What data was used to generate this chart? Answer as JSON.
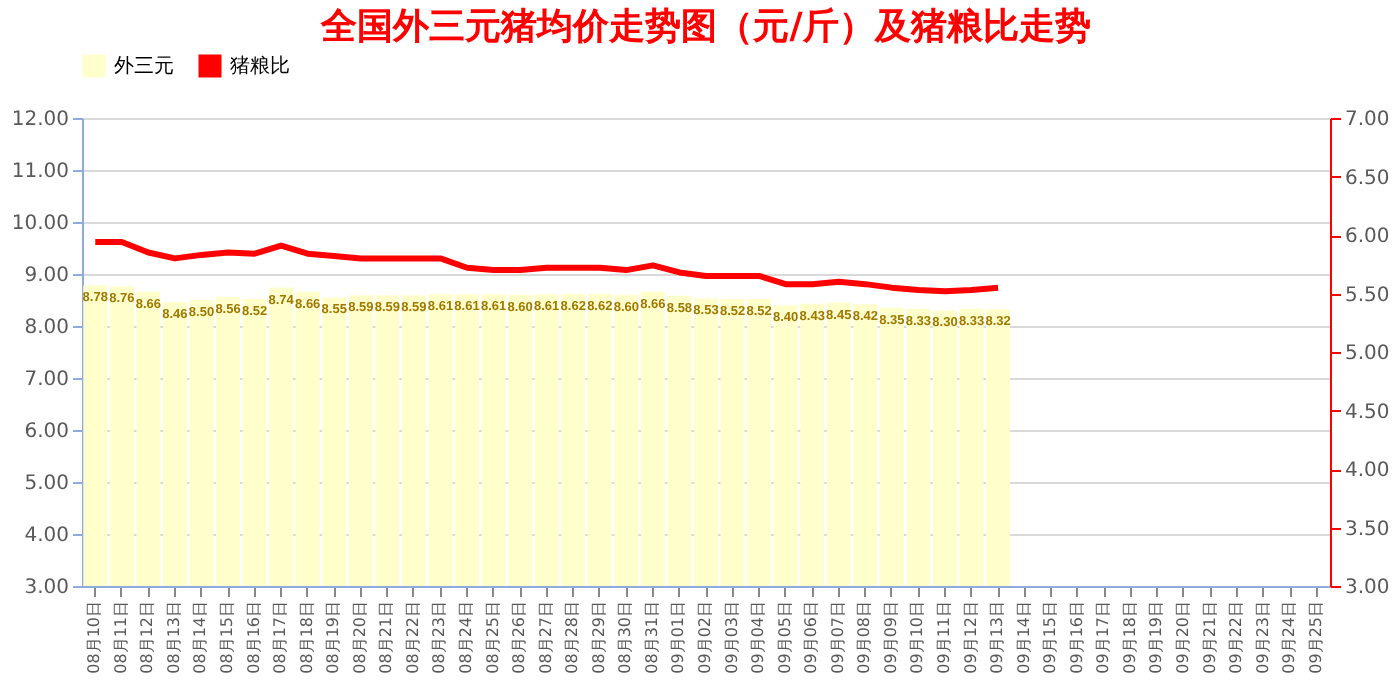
{
  "chart_data": {
    "type": "bar",
    "title": "全国外三元猪均价走势图（元/斤）及猪粮比走势",
    "categories": [
      "08月10日",
      "08月11日",
      "08月12日",
      "08月13日",
      "08月14日",
      "08月15日",
      "08月16日",
      "08月17日",
      "08月18日",
      "08月19日",
      "08月20日",
      "08月21日",
      "08月22日",
      "08月23日",
      "08月24日",
      "08月25日",
      "08月26日",
      "08月27日",
      "08月28日",
      "08月29日",
      "08月30日",
      "08月31日",
      "09月01日",
      "09月02日",
      "09月03日",
      "09月04日",
      "09月05日",
      "09月06日",
      "09月07日",
      "09月08日",
      "09月09日",
      "09月10日",
      "09月11日",
      "09月12日",
      "09月13日",
      "09月14日",
      "09月15日",
      "09月16日",
      "09月17日",
      "09月18日",
      "09月19日",
      "09月20日",
      "09月21日",
      "09月22日",
      "09月23日",
      "09月24日",
      "09月25日"
    ],
    "series": [
      {
        "name": "外三元",
        "color": "#ffffcc",
        "values": [
          8.78,
          8.76,
          8.66,
          8.46,
          8.5,
          8.56,
          8.52,
          8.74,
          8.66,
          8.55,
          8.59,
          8.59,
          8.59,
          8.61,
          8.61,
          8.61,
          8.6,
          8.61,
          8.62,
          8.62,
          8.6,
          8.66,
          8.58,
          8.53,
          8.52,
          8.52,
          8.4,
          8.43,
          8.45,
          8.42,
          8.35,
          8.33,
          8.3,
          8.33,
          8.32,
          null,
          null,
          null,
          null,
          null,
          null,
          null,
          null,
          null,
          null,
          null,
          null
        ],
        "value_labels": [
          "8.78",
          "8.76",
          "8.66",
          "8.46",
          "8.50",
          "8.56",
          "8.52",
          "8.74",
          "8.66",
          "8.55",
          "8.59",
          "8.59",
          "8.59",
          "8.61",
          "8.61",
          "8.61",
          "8.60",
          "8.61",
          "8.62",
          "8.62",
          "8.60",
          "8.66",
          "8.58",
          "8.53",
          "8.52",
          "8.52",
          "8.40",
          "8.43",
          "8.45",
          "8.42",
          "8.35",
          "8.33",
          "8.30",
          "8.33",
          "8.32",
          null,
          null,
          null,
          null,
          null,
          null,
          null,
          null,
          null,
          null,
          null,
          null
        ]
      },
      {
        "name": "猪粮比",
        "type": "line",
        "axis": "y2",
        "color": "#ff0000",
        "values": [
          5.94,
          5.94,
          5.85,
          5.8,
          5.83,
          5.85,
          5.84,
          5.91,
          5.84,
          5.82,
          5.8,
          5.8,
          5.8,
          5.8,
          5.72,
          5.7,
          5.7,
          5.72,
          5.72,
          5.72,
          5.7,
          5.74,
          5.68,
          5.65,
          5.65,
          5.65,
          5.58,
          5.58,
          5.6,
          5.58,
          5.55,
          5.53,
          5.52,
          5.53,
          5.55,
          null,
          null,
          null,
          null,
          null,
          null,
          null,
          null,
          null,
          null,
          null,
          null
        ]
      }
    ],
    "ylim": [
      3,
      12
    ],
    "yticks": [
      {
        "value": 3,
        "label": "3.00"
      },
      {
        "value": 4,
        "label": "4.00"
      },
      {
        "value": 5,
        "label": "5.00"
      },
      {
        "value": 6,
        "label": "6.00"
      },
      {
        "value": 7,
        "label": "7.00"
      },
      {
        "value": 8,
        "label": "8.00"
      },
      {
        "value": 9,
        "label": "9.00"
      },
      {
        "value": 10,
        "label": "10.00"
      },
      {
        "value": 11,
        "label": "11.00"
      },
      {
        "value": 12,
        "label": "12.00"
      }
    ],
    "y2lim": [
      3,
      7
    ],
    "y2ticks": [
      {
        "value": 3,
        "label": "3.00"
      },
      {
        "value": 3.5,
        "label": "3.50"
      },
      {
        "value": 4,
        "label": "4.00"
      },
      {
        "value": 4.5,
        "label": "4.50"
      },
      {
        "value": 5,
        "label": "5.00"
      },
      {
        "value": 5.5,
        "label": "5.50"
      },
      {
        "value": 6,
        "label": "6.00"
      },
      {
        "value": 6.5,
        "label": "6.50"
      },
      {
        "value": 7,
        "label": "7.00"
      }
    ],
    "grid": "y",
    "legend": "top",
    "marker": "none"
  }
}
